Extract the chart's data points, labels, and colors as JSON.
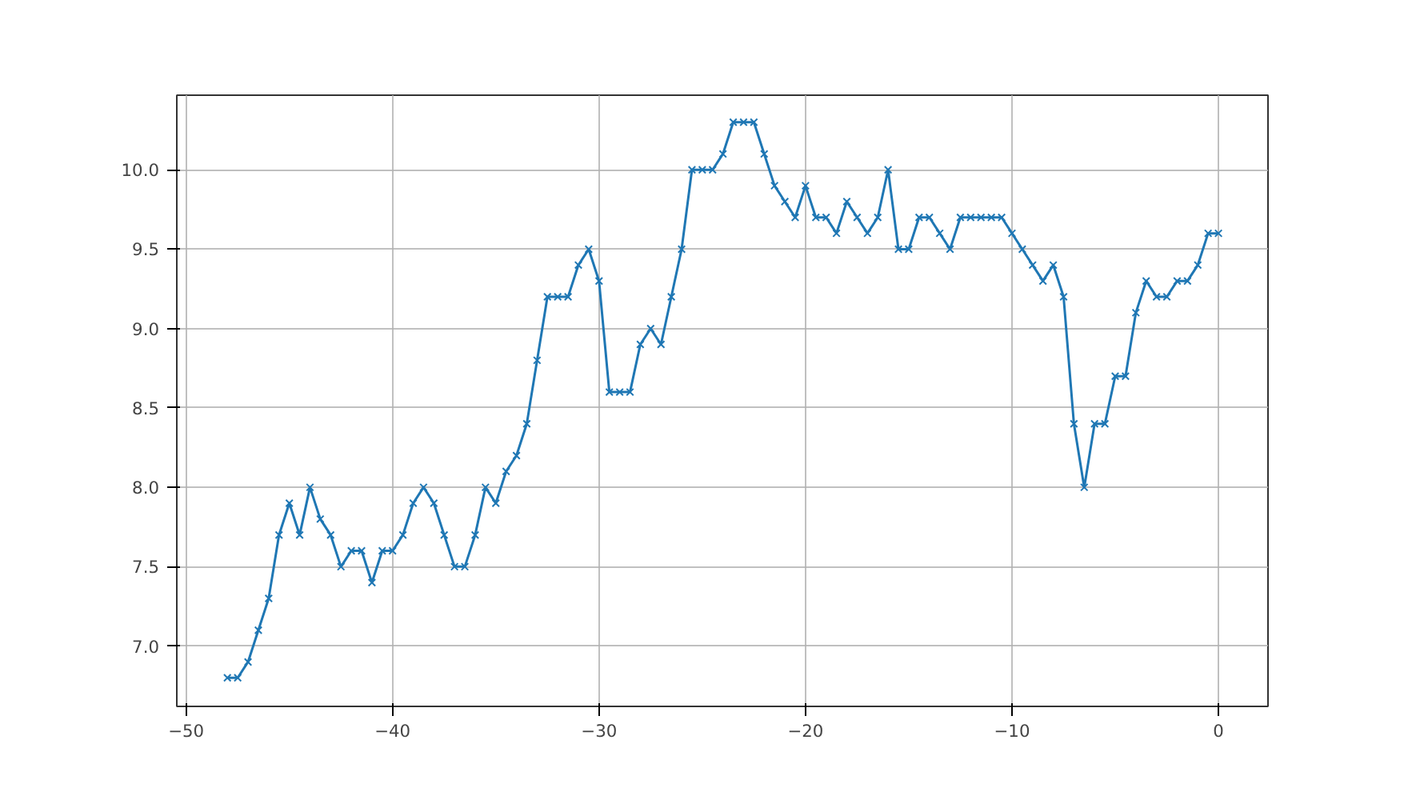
{
  "chart_data": {
    "type": "line",
    "x": [
      -48,
      -47.5,
      -47,
      -46.5,
      -46,
      -45.5,
      -45,
      -44.5,
      -44,
      -43.5,
      -43,
      -42.5,
      -42,
      -41.5,
      -41,
      -40.5,
      -40,
      -39.5,
      -39,
      -38.5,
      -38,
      -37.5,
      -37,
      -36.5,
      -36,
      -35.5,
      -35,
      -34.5,
      -34,
      -33.5,
      -33,
      -32.5,
      -32,
      -31.5,
      -31,
      -30.5,
      -30,
      -29.5,
      -29,
      -28.5,
      -28,
      -27.5,
      -27,
      -26.5,
      -26,
      -25.5,
      -25,
      -24.5,
      -24,
      -23.5,
      -23,
      -22.5,
      -22,
      -21.5,
      -21,
      -20.5,
      -20,
      -19.5,
      -19,
      -18.5,
      -18,
      -17.5,
      -17,
      -16.5,
      -16,
      -15.5,
      -15,
      -14.5,
      -14,
      -13.5,
      -13,
      -12.5,
      -12,
      -11.5,
      -11,
      -10.5,
      -10,
      -9.5,
      -9,
      -8.5,
      -8,
      -7.5,
      -7,
      -6.5,
      -6,
      -5.5,
      -5,
      -4.5,
      -4,
      -3.5,
      -3,
      -2.5,
      -2,
      -1.5,
      -1,
      -0.5,
      0
    ],
    "series": [
      {
        "color": "#1f77b4",
        "values": [
          6.8,
          6.8,
          6.9,
          7.1,
          7.3,
          7.7,
          7.9,
          7.7,
          8.0,
          7.8,
          7.7,
          7.5,
          7.6,
          7.6,
          7.4,
          7.6,
          7.6,
          7.7,
          7.9,
          8.0,
          7.9,
          7.7,
          7.5,
          7.5,
          7.7,
          8.0,
          7.9,
          8.1,
          8.2,
          8.4,
          8.8,
          9.2,
          9.2,
          9.2,
          9.4,
          9.5,
          9.3,
          8.6,
          8.6,
          8.6,
          8.9,
          9.0,
          8.9,
          9.2,
          9.5,
          10.0,
          10.0,
          10.0,
          10.1,
          10.3,
          10.3,
          10.3,
          10.1,
          9.9,
          9.8,
          9.7,
          9.9,
          9.7,
          9.7,
          9.6,
          9.8,
          9.7,
          9.6,
          9.7,
          10.0,
          9.5,
          9.5,
          9.7,
          9.7,
          9.6,
          9.5,
          9.7,
          9.7,
          9.7,
          9.7,
          9.7,
          9.6,
          9.5,
          9.4,
          9.3,
          9.4,
          9.2,
          8.4,
          8.0,
          8.4,
          8.4,
          8.7,
          8.7,
          9.1,
          9.3,
          9.2,
          9.2,
          9.3,
          9.3,
          9.4,
          9.6,
          9.6
        ]
      }
    ],
    "xlim": [
      -50.45,
      2.4
    ],
    "ylim": [
      6.62,
      10.47
    ],
    "xticks": [
      {
        "value": -50,
        "label": "−50"
      },
      {
        "value": -40,
        "label": "−40"
      },
      {
        "value": -30,
        "label": "−30"
      },
      {
        "value": -20,
        "label": "−20"
      },
      {
        "value": -10,
        "label": "−10"
      },
      0
    ],
    "yticks": [
      {
        "value": 7,
        "label": "7.0"
      },
      {
        "value": 7.5,
        "label": "7.5"
      },
      {
        "value": 8,
        "label": "8.0"
      },
      {
        "value": 8.5,
        "label": "8.5"
      },
      {
        "value": 9,
        "label": "9.0"
      },
      {
        "value": 9.5,
        "label": "9.5"
      },
      {
        "value": 10,
        "label": "10.0"
      }
    ],
    "grid": true,
    "marker": "cross",
    "line_style": "solid"
  }
}
